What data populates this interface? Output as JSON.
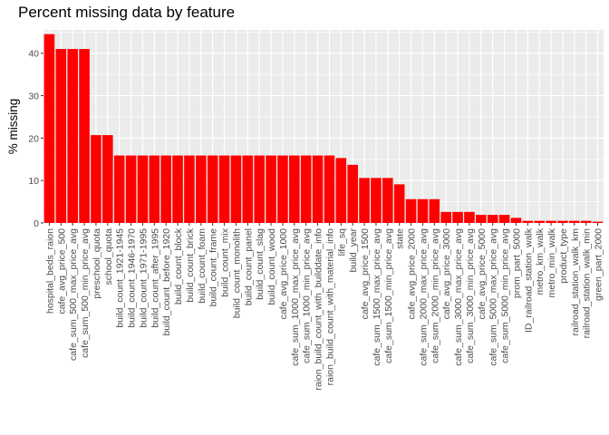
{
  "chart_data": {
    "type": "bar",
    "title": "Percent missing data by feature",
    "xlabel": "",
    "ylabel": "% missing",
    "ylim": [
      0,
      45.5
    ],
    "yticks": [
      0,
      10,
      20,
      30,
      40
    ],
    "bar_color": "#ff0000",
    "panel_background": "#ebebeb",
    "grid": true,
    "legend": "none",
    "categories": [
      "hospital_beds_raion",
      "cafe_avg_price_500",
      "cafe_sum_500_max_price_avg",
      "cafe_sum_500_min_price_avg",
      "preschool_quota",
      "school_quota",
      "build_count_1921-1945",
      "build_count_1946-1970",
      "build_count_1971-1995",
      "build_count_after_1995",
      "build_count_before_1920",
      "build_count_block",
      "build_count_brick",
      "build_count_foam",
      "build_count_frame",
      "build_count_mix",
      "build_count_monolith",
      "build_count_panel",
      "build_count_slag",
      "build_count_wood",
      "cafe_avg_price_1000",
      "cafe_sum_1000_max_price_avg",
      "cafe_sum_1000_min_price_avg",
      "raion_build_count_with_builddate_info",
      "raion_build_count_with_material_info",
      "life_sq",
      "build_year",
      "cafe_avg_price_1500",
      "cafe_sum_1500_max_price_avg",
      "cafe_sum_1500_min_price_avg",
      "state",
      "cafe_avg_price_2000",
      "cafe_sum_2000_max_price_avg",
      "cafe_sum_2000_min_price_avg",
      "cafe_avg_price_3000",
      "cafe_sum_3000_max_price_avg",
      "cafe_sum_3000_min_price_avg",
      "cafe_avg_price_5000",
      "cafe_sum_5000_max_price_avg",
      "cafe_sum_5000_min_price_avg",
      "prom_part_5000",
      "ID_railroad_station_walk",
      "metro_km_walk",
      "metro_min_walk",
      "product_type",
      "railroad_station_walk_km",
      "railroad_station_walk_min",
      "green_part_2000"
    ],
    "values": [
      44.5,
      41.0,
      41.0,
      41.0,
      20.7,
      20.7,
      15.9,
      15.9,
      15.9,
      15.9,
      15.9,
      15.9,
      15.9,
      15.9,
      15.9,
      15.9,
      15.9,
      15.9,
      15.9,
      15.9,
      15.9,
      15.9,
      15.9,
      15.9,
      15.9,
      15.3,
      13.7,
      10.6,
      10.6,
      10.6,
      9.1,
      5.6,
      5.6,
      5.6,
      2.6,
      2.6,
      2.6,
      1.9,
      1.9,
      1.9,
      1.2,
      0.5,
      0.5,
      0.5,
      0.5,
      0.5,
      0.5,
      0.3
    ]
  }
}
